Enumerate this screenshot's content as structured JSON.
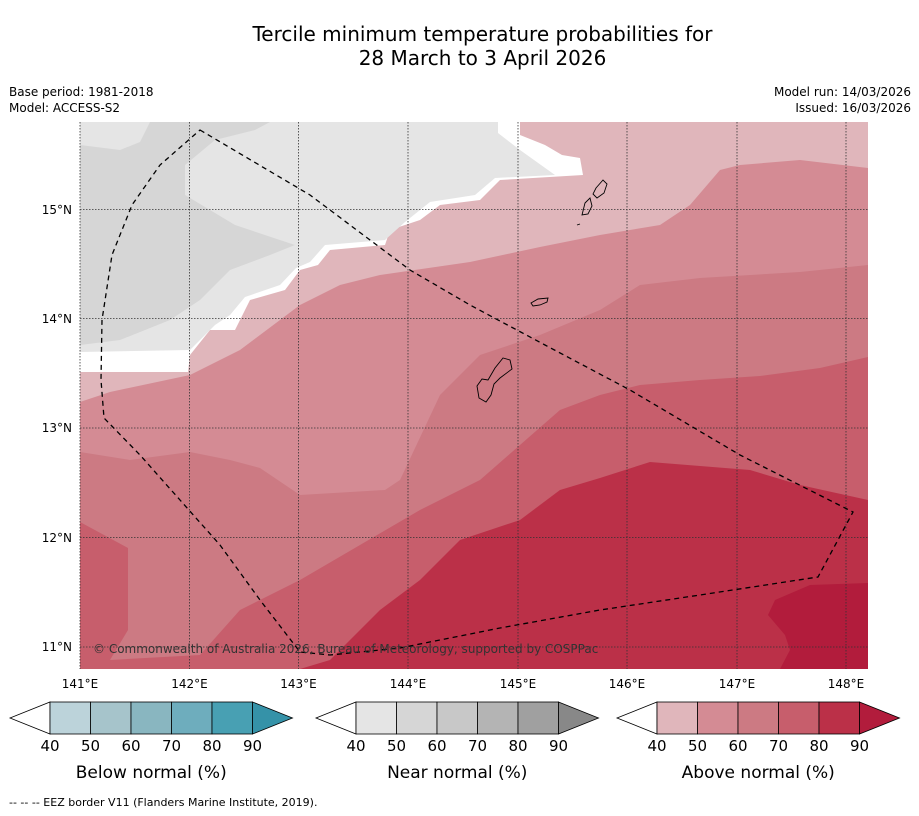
{
  "title_line1": "Tercile minimum temperature probabilities for",
  "title_line2": "28 March to 3 April 2026",
  "base_period": "Base period: 1981-2018",
  "model": "Model: ACCESS-S2",
  "model_run": "Model run: 14/03/2026",
  "issued": "Issued: 16/03/2026",
  "copyright": "© Commonwealth of Australia 2026, Bureau of Meteorology, supported by COSPPac",
  "footnote": "--  --  -- EEZ border V11 (Flanders Marine Institute, 2019).",
  "map": {
    "lon_labels": [
      "141°E",
      "142°E",
      "143°E",
      "144°E",
      "145°E",
      "146°E",
      "147°E",
      "148°E"
    ],
    "lat_labels": [
      "15°N",
      "14°N",
      "13°N",
      "12°N",
      "11°N"
    ]
  },
  "colorbars": [
    {
      "label": "Below normal (%)",
      "ticks": [
        "40",
        "50",
        "60",
        "70",
        "80",
        "90"
      ],
      "colors": [
        "#ffffff",
        "#bcd3da",
        "#a6c4cb",
        "#89b6c0",
        "#6eadbd",
        "#48a0b3",
        "#3592a8"
      ]
    },
    {
      "label": "Near normal (%)",
      "ticks": [
        "40",
        "50",
        "60",
        "70",
        "80",
        "90"
      ],
      "colors": [
        "#ffffff",
        "#e5e5e5",
        "#d6d6d6",
        "#c8c8c8",
        "#b4b4b4",
        "#a0a0a0",
        "#888888"
      ]
    },
    {
      "label": "Above normal (%)",
      "ticks": [
        "40",
        "50",
        "60",
        "70",
        "80",
        "90"
      ],
      "colors": [
        "#ffffff",
        "#e0b6bb",
        "#d48b94",
        "#cc7a83",
        "#c75e6c",
        "#bb3048",
        "#b21c3c"
      ]
    }
  ]
}
